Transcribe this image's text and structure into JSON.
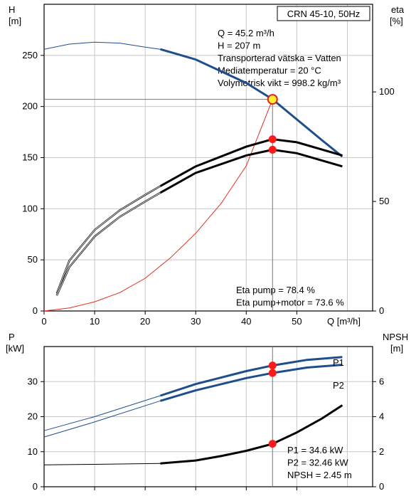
{
  "chart_data": [
    {
      "type": "line",
      "title": "CRN 45-10, 50Hz",
      "ylabel_left": [
        "H",
        "[m]"
      ],
      "ylabel_right": [
        "eta",
        "[%]"
      ],
      "xlabel": "Q [m³/h]",
      "xlim": [
        0,
        65
      ],
      "ylim_left": [
        0,
        300
      ],
      "ylim_right": [
        0,
        140
      ],
      "xticks": [
        0,
        10,
        20,
        30,
        40,
        50
      ],
      "yticks_left": [
        0,
        50,
        100,
        150,
        200,
        250
      ],
      "yticks_right": [
        0,
        50,
        100
      ],
      "grid": true,
      "operating_point": {
        "q": 45.2,
        "h": 207,
        "eta_pump": 78.4,
        "eta_total": 73.6
      },
      "info_lines": [
        "Q = 45.2 m³/h",
        "H = 207 m",
        "Transporterad vätska = Vatten",
        "Mediatemperatur = 20 °C",
        "Volymetrisk vikt = 998.2 kg/m³"
      ],
      "eta_lines": [
        "Eta pump = 78.4 %",
        "Eta pump+motor = 73.6 %"
      ],
      "series": [
        {
          "axis": "left",
          "color": "#1f4e8c",
          "x": [
            0,
            5,
            10,
            15,
            20,
            23,
            30,
            40,
            45.2,
            55,
            59
          ],
          "y": [
            256,
            261,
            263,
            262,
            258,
            256,
            246,
            223,
            207,
            167,
            151
          ],
          "bold_from": 23
        },
        {
          "axis": "left",
          "color": "#e03020",
          "x": [
            0,
            5,
            10,
            15,
            20,
            25,
            30,
            35,
            40,
            45.2
          ],
          "y": [
            0,
            3,
            9,
            18,
            32,
            52,
            76,
            105,
            142,
            207
          ]
        },
        {
          "axis": "right",
          "color": "#000000",
          "x": [
            2.5,
            5,
            10,
            15,
            20,
            23,
            30,
            40,
            45.2,
            50,
            59
          ],
          "y": [
            8,
            23,
            37,
            46,
            53,
            57,
            66,
            75,
            78.4,
            77,
            71
          ],
          "bold_from": 23
        },
        {
          "axis": "right",
          "color": "#000000",
          "x": [
            2.5,
            5,
            10,
            15,
            20,
            23,
            30,
            40,
            45.2,
            50,
            59
          ],
          "y": [
            7,
            20,
            34,
            43,
            50,
            54,
            63,
            71,
            73.6,
            72,
            66
          ],
          "bold_from": 23
        }
      ]
    },
    {
      "type": "line",
      "ylabel_left": [
        "P",
        "[kW]"
      ],
      "ylabel_right": [
        "NPSH",
        "[m]"
      ],
      "xlim": [
        0,
        65
      ],
      "ylim_left": [
        0,
        40
      ],
      "ylim_right": [
        0,
        8
      ],
      "yticks_left": [
        0,
        10,
        20,
        30
      ],
      "yticks_right": [
        0,
        2,
        4,
        6
      ],
      "grid": true,
      "operating_point": {
        "q": 45.2,
        "p1": 34.6,
        "p2": 32.46,
        "npsh": 2.45
      },
      "info_lines": [
        "P1 = 34.6 kW",
        "P2 = 32.46 kW",
        "NPSH = 2.45 m"
      ],
      "series": [
        {
          "name": "P1",
          "axis": "left",
          "color": "#1f4e8c",
          "x": [
            0,
            10,
            23,
            30,
            40,
            45.2,
            52,
            59
          ],
          "y": [
            16,
            20,
            26,
            29.3,
            33,
            34.6,
            36.2,
            37
          ],
          "bold_from": 23
        },
        {
          "name": "P2",
          "axis": "left",
          "color": "#1f4e8c",
          "x": [
            0,
            10,
            23,
            30,
            40,
            45.2,
            52,
            59
          ],
          "y": [
            14.2,
            18.5,
            24.5,
            27.5,
            31,
            32.46,
            34,
            34.8
          ],
          "bold_from": 23
        },
        {
          "axis": "right",
          "color": "#000000",
          "x": [
            0,
            10,
            23,
            30,
            35,
            40,
            45.2,
            50,
            55,
            59
          ],
          "y": [
            1.25,
            1.28,
            1.33,
            1.5,
            1.75,
            2.05,
            2.45,
            3.1,
            3.9,
            4.65
          ],
          "bold_from": 23
        }
      ]
    }
  ]
}
